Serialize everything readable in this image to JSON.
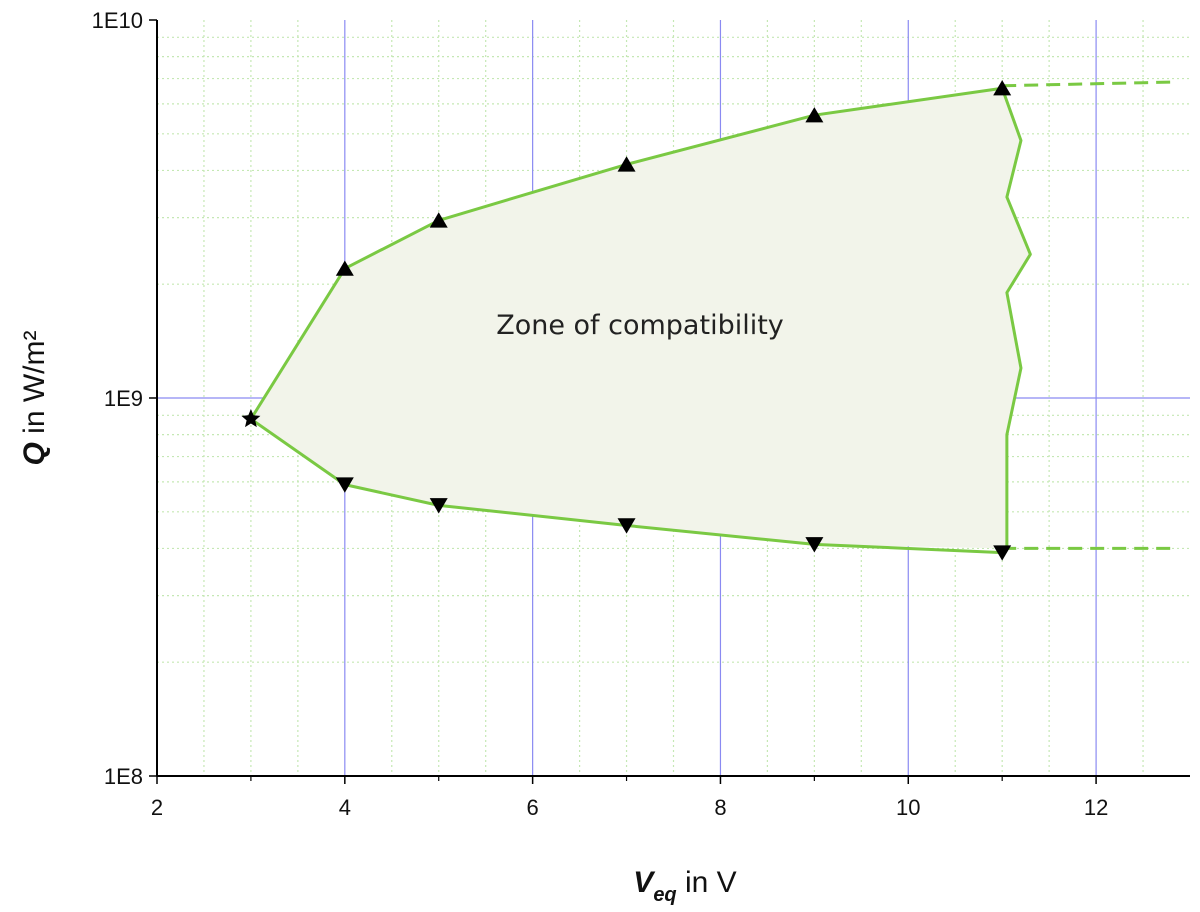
{
  "chart_data": {
    "type": "area",
    "title": "",
    "xlabel": {
      "symbol": "V",
      "subscript": "eq",
      "unit": " in V"
    },
    "ylabel": {
      "symbol": "Q",
      "unit": " in W/m²"
    },
    "xlim": [
      2,
      13
    ],
    "ylim": [
      100000000,
      10000000000
    ],
    "yscale": "log",
    "x_ticks": [
      2,
      4,
      6,
      8,
      10,
      12
    ],
    "x_tick_labels": [
      "2",
      "4",
      "6",
      "8",
      "10",
      "12"
    ],
    "y_ticks": [
      100000000,
      1000000000,
      10000000000
    ],
    "y_tick_labels": [
      "1E8",
      "1E9",
      "1E10"
    ],
    "grid": {
      "major": true,
      "minor": true
    },
    "annotation": "Zone of compatibility",
    "series": [
      {
        "role": "upper-bound",
        "marker": "triangle-up",
        "x": [
          3,
          4,
          5,
          7,
          9,
          11
        ],
        "y": [
          880000000,
          2200000000,
          2950000000,
          4150000000,
          5600000000,
          6600000000
        ]
      },
      {
        "role": "lower-bound",
        "marker": "triangle-down",
        "x": [
          3,
          4,
          5,
          7,
          9,
          11
        ],
        "y": [
          880000000,
          590000000,
          520000000,
          460000000,
          410000000,
          390000000
        ]
      }
    ],
    "start_point": {
      "x": 3,
      "y": 880000000,
      "marker": "star"
    },
    "right_boundary": {
      "x": [
        11,
        11.2,
        11.05,
        11.3,
        11.05,
        11.2,
        11.05,
        11.05
      ],
      "y": [
        6600000000,
        4800000000,
        3400000000,
        2400000000,
        1900000000,
        1200000000,
        800000000,
        400000000
      ]
    },
    "extensions": [
      {
        "style": "dashed",
        "x": [
          11,
          12.8
        ],
        "y": [
          6700000000,
          6850000000
        ]
      },
      {
        "style": "dashed",
        "x": [
          11,
          12.8
        ],
        "y": [
          400000000,
          400000000
        ]
      }
    ],
    "colors": {
      "boundary": "#7ac943",
      "fill": "#f2f4ea",
      "major_grid": "#8a8af2",
      "minor_grid": "#c5e8b4",
      "marker": "#000000"
    }
  }
}
